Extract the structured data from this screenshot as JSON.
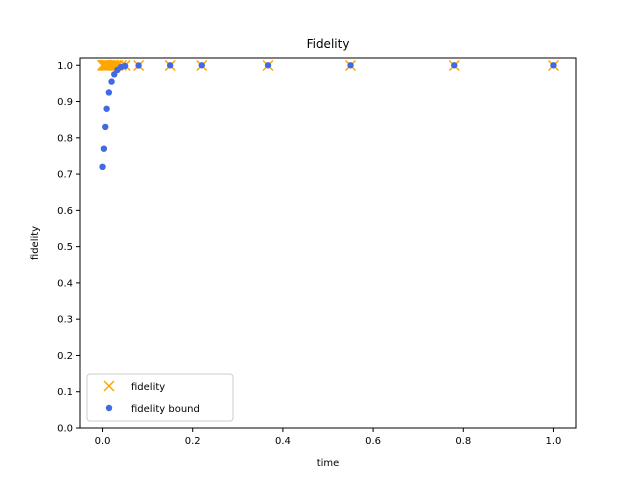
{
  "chart_data": {
    "type": "scatter",
    "title": "Fidelity",
    "xlabel": "time",
    "ylabel": "fidelity",
    "xlim": [
      -0.05,
      1.05
    ],
    "ylim": [
      0.0,
      1.02
    ],
    "xticks": [
      "0.0",
      "0.2",
      "0.4",
      "0.6",
      "0.8",
      "1.0"
    ],
    "yticks": [
      "0.0",
      "0.1",
      "0.2",
      "0.3",
      "0.4",
      "0.5",
      "0.6",
      "0.7",
      "0.8",
      "0.9",
      "1.0"
    ],
    "grid": false,
    "legend_position": "lower-left",
    "series": [
      {
        "name": "fidelity",
        "marker": "x",
        "color": "#ffa500",
        "x": [
          0.0,
          0.002,
          0.004,
          0.006,
          0.008,
          0.01,
          0.013,
          0.016,
          0.02,
          0.025,
          0.03,
          0.035,
          0.042,
          0.05,
          0.08,
          0.15,
          0.22,
          0.367,
          0.55,
          0.78,
          1.0
        ],
        "y": [
          0.9998,
          0.9998,
          0.9998,
          0.9998,
          0.9998,
          0.9998,
          0.9997,
          0.9997,
          0.9997,
          0.9997,
          0.9996,
          0.9996,
          0.9995,
          0.9995,
          0.9994,
          0.9993,
          0.9993,
          0.9993,
          0.9993,
          0.9993,
          0.9993
        ]
      },
      {
        "name": "fidelity bound",
        "marker": "o",
        "color": "#4169e1",
        "x": [
          0.0,
          0.003,
          0.006,
          0.009,
          0.014,
          0.02,
          0.026,
          0.033,
          0.041,
          0.05,
          0.08,
          0.15,
          0.22,
          0.367,
          0.55,
          0.78,
          1.0
        ],
        "y": [
          0.72,
          0.77,
          0.83,
          0.88,
          0.925,
          0.955,
          0.975,
          0.987,
          0.995,
          0.998,
          0.9995,
          0.9998,
          0.9999,
          0.9999,
          0.9999,
          0.9999,
          0.9999
        ]
      }
    ]
  }
}
